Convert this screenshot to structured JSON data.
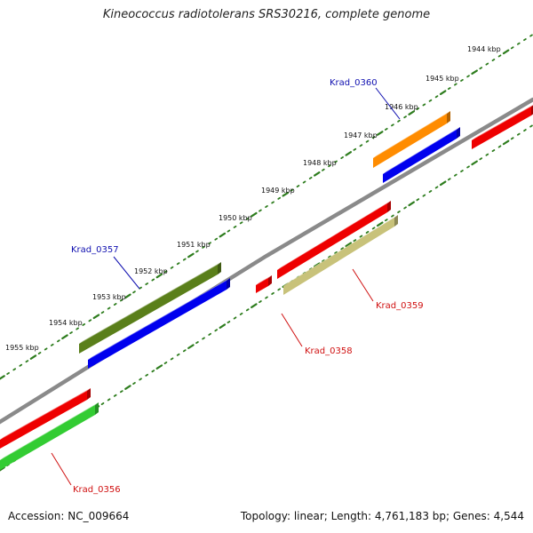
{
  "title": "Kineococcus radiotolerans SRS30216, complete genome",
  "footer": {
    "accession": "Accession: NC_009664",
    "summary": "Topology: linear; Length: 4,761,183 bp; Genes: 4,544"
  },
  "colors": {
    "backbone": "#8a8a8a",
    "tick": "#2e7d1e",
    "label_top": "#1010b0",
    "label_bottom": "#d01010"
  },
  "kbp_labels": [
    "1944 kbp",
    "1945 kbp",
    "1946 kbp",
    "1947 kbp",
    "1948 kbp",
    "1949 kbp",
    "1950 kbp",
    "1951 kbp",
    "1952 kbp",
    "1953 kbp",
    "1954 kbp",
    "1955 kbp"
  ],
  "genes": [
    {
      "id": "Krad_0360",
      "color": "#ff8c00",
      "labeled": true
    },
    {
      "id": "",
      "color": "#0000ee",
      "labeled": false
    },
    {
      "id": "Krad_0357",
      "color": "#5a7f1a",
      "labeled": true
    },
    {
      "id": "",
      "color": "#0000ee",
      "labeled": false
    },
    {
      "id": "Krad_0359",
      "color": "#c8c27a",
      "labeled": true
    },
    {
      "id": "",
      "color": "#ee0000",
      "labeled": false
    },
    {
      "id": "Krad_0358",
      "color": "#ee0000",
      "labeled": true
    },
    {
      "id": "",
      "color": "#ee0000",
      "labeled": false
    },
    {
      "id": "Krad_0356",
      "color": "#33cc33",
      "labeled": true
    },
    {
      "id": "",
      "color": "#ee0000",
      "labeled": false
    }
  ]
}
